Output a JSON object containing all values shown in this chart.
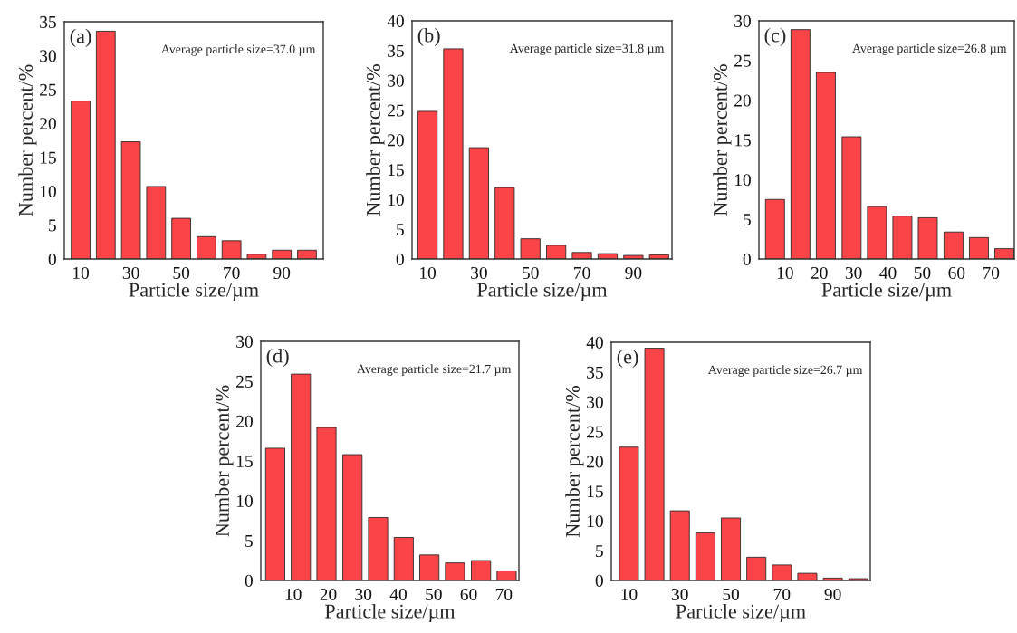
{
  "chart_data": [
    {
      "type": "bar",
      "annotations": [
        "(a)",
        "Average particle size=37.0 µm"
      ],
      "xlabel": "Particle size/µm",
      "ylabel": "Number percent/%",
      "color": "#fa4448",
      "x": [
        10,
        20,
        30,
        40,
        50,
        60,
        70,
        80,
        90,
        100
      ],
      "values": [
        23.3,
        33.6,
        17.3,
        10.7,
        6.0,
        3.3,
        2.7,
        0.7,
        1.3,
        1.3
      ],
      "xlim": [
        3.5,
        106.5
      ],
      "xticks": [
        10,
        30,
        50,
        70,
        90
      ],
      "ylim": [
        0,
        35
      ],
      "yticks": [
        0,
        5,
        10,
        15,
        20,
        25,
        30,
        35
      ]
    },
    {
      "type": "bar",
      "annotations": [
        "(b)",
        "Average particle size=31.8 µm"
      ],
      "xlabel": "Particle size/µm",
      "ylabel": "Number percent/%",
      "color": "#fa4448",
      "x": [
        10,
        20,
        30,
        40,
        50,
        60,
        70,
        80,
        90,
        100
      ],
      "values": [
        24.8,
        35.3,
        18.7,
        12.0,
        3.4,
        2.3,
        1.1,
        0.9,
        0.6,
        0.7
      ],
      "xlim": [
        4,
        105
      ],
      "xticks": [
        10,
        30,
        50,
        70,
        90
      ],
      "ylim": [
        0,
        40
      ],
      "yticks": [
        0,
        5,
        10,
        15,
        20,
        25,
        30,
        35,
        40
      ]
    },
    {
      "type": "bar",
      "annotations": [
        "(c)",
        "Average particle size=26.8 µm"
      ],
      "xlabel": "Particle size/µm",
      "ylabel": "Number percent/%",
      "color": "#fa4448",
      "x": [
        7.1,
        14.5,
        21.9,
        29.4,
        36.8,
        44.2,
        51.6,
        59.1,
        66.5,
        73.9
      ],
      "values": [
        7.5,
        28.9,
        23.5,
        15.4,
        6.6,
        5.4,
        5.2,
        3.4,
        2.7,
        1.3
      ],
      "xlim": [
        2.4,
        76.8
      ],
      "xticks": [
        10,
        20,
        30,
        40,
        50,
        60,
        70
      ],
      "ylim": [
        0,
        30
      ],
      "yticks": [
        0,
        5,
        10,
        15,
        20,
        25,
        30
      ]
    },
    {
      "type": "bar",
      "annotations": [
        "(d)",
        "Average particle size=21.7 µm"
      ],
      "xlabel": "Particle size/µm",
      "ylabel": "Number percent/%",
      "color": "#fa4448",
      "x": [
        4.9,
        12.2,
        19.5,
        26.9,
        34.2,
        41.5,
        48.8,
        56.1,
        63.5,
        70.8
      ],
      "values": [
        16.6,
        25.9,
        19.2,
        15.8,
        7.9,
        5.4,
        3.2,
        2.2,
        2.5,
        1.2
      ],
      "xlim": [
        0.8,
        74.3
      ],
      "xticks": [
        10,
        20,
        30,
        40,
        50,
        60,
        70
      ],
      "ylim": [
        0,
        30
      ],
      "yticks": [
        0,
        5,
        10,
        15,
        20,
        25,
        30
      ]
    },
    {
      "type": "bar",
      "annotations": [
        "(e)",
        "Average particle size=26.7 µm"
      ],
      "xlabel": "Particle size/µm",
      "ylabel": "Number percent/%",
      "color": "#fa4448",
      "x": [
        10,
        20,
        30,
        40,
        50,
        60,
        70,
        80,
        90,
        100
      ],
      "values": [
        22.4,
        39.0,
        11.7,
        8.0,
        10.5,
        3.9,
        2.6,
        1.2,
        0.4,
        0.3
      ],
      "xlim": [
        3.1,
        104.7
      ],
      "xticks": [
        10,
        30,
        50,
        70,
        90
      ],
      "ylim": [
        0,
        40
      ],
      "yticks": [
        0,
        5,
        10,
        15,
        20,
        25,
        30,
        35,
        40
      ]
    }
  ]
}
